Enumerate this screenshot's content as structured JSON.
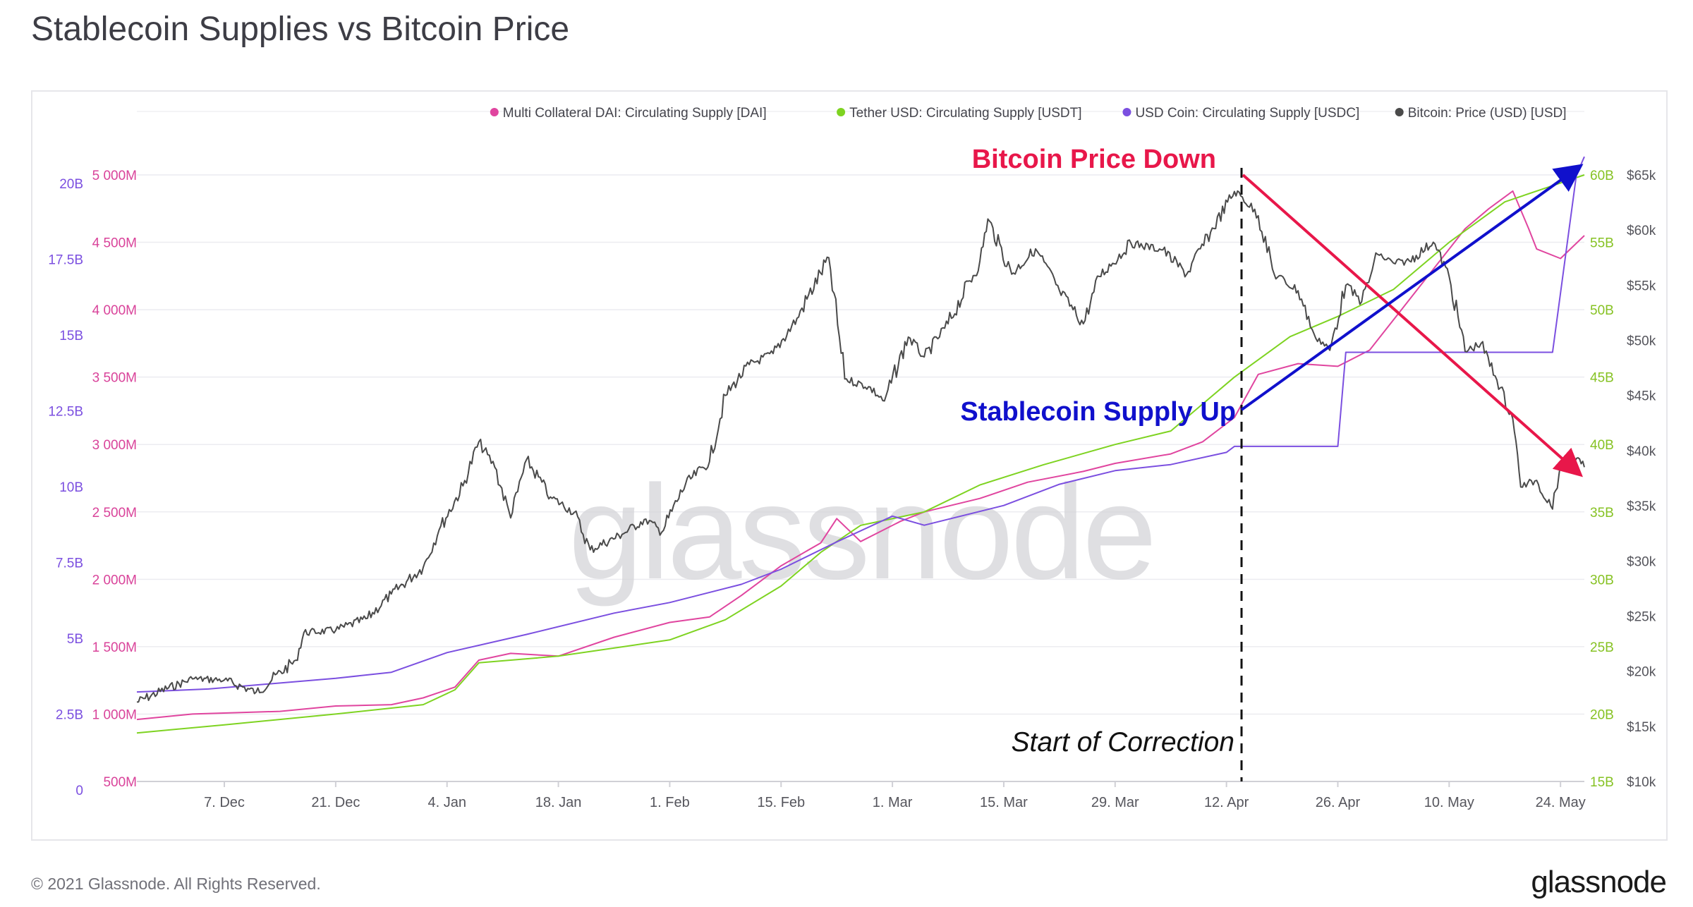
{
  "page": {
    "title": "Stablecoin Supplies vs Bitcoin Price",
    "copyright": "© 2021 Glassnode. All Rights Reserved.",
    "brand": "glassnode",
    "watermark": "glassnode"
  },
  "chart_data": {
    "type": "line",
    "title": "Stablecoin Supplies vs Bitcoin Price",
    "legend": {
      "placement": "top-right",
      "entries": [
        {
          "label": "Multi Collateral DAI: Circulating Supply [DAI]",
          "color": "#e0459f"
        },
        {
          "label": "Tether USD: Circulating Supply [USDT]",
          "color": "#7ed321"
        },
        {
          "label": "USD Coin: Circulating Supply [USDC]",
          "color": "#7b4fe0"
        },
        {
          "label": "Bitcoin: Price (USD) [USD]",
          "color": "#4a4a4a"
        }
      ]
    },
    "x_axis": {
      "start": "2020-11-26",
      "end": "2021-05-27",
      "ticks": [
        {
          "date": "2020-12-07",
          "label": "7. Dec"
        },
        {
          "date": "2020-12-21",
          "label": "21. Dec"
        },
        {
          "date": "2021-01-04",
          "label": "4. Jan"
        },
        {
          "date": "2021-01-18",
          "label": "18. Jan"
        },
        {
          "date": "2021-02-01",
          "label": "1. Feb"
        },
        {
          "date": "2021-02-15",
          "label": "15. Feb"
        },
        {
          "date": "2021-03-01",
          "label": "1. Mar"
        },
        {
          "date": "2021-03-15",
          "label": "15. Mar"
        },
        {
          "date": "2021-03-29",
          "label": "29. Mar"
        },
        {
          "date": "2021-04-12",
          "label": "12. Apr"
        },
        {
          "date": "2021-04-26",
          "label": "26. Apr"
        },
        {
          "date": "2021-05-10",
          "label": "10. May"
        },
        {
          "date": "2021-05-24",
          "label": "24. May"
        }
      ]
    },
    "y_axes": [
      {
        "id": "usdc",
        "side": "left-outer",
        "color": "#7b4fe0",
        "range": [
          0,
          20000000000
        ],
        "ticks": [
          {
            "value": 0,
            "label": "0"
          },
          {
            "value": 2500000000,
            "label": "2.5B"
          },
          {
            "value": 5000000000,
            "label": "5B"
          },
          {
            "value": 7500000000,
            "label": "7.5B"
          },
          {
            "value": 10000000000,
            "label": "10B"
          },
          {
            "value": 12500000000,
            "label": "12.5B"
          },
          {
            "value": 15000000000,
            "label": "15B"
          },
          {
            "value": 17500000000,
            "label": "17.5B"
          },
          {
            "value": 20000000000,
            "label": "20B"
          }
        ]
      },
      {
        "id": "dai",
        "side": "left-inner",
        "color": "#d9439a",
        "range": [
          500000000,
          5000000000
        ],
        "ticks": [
          {
            "value": 500000000,
            "label": "500M"
          },
          {
            "value": 1000000000,
            "label": "1 000M"
          },
          {
            "value": 1500000000,
            "label": "1 500M"
          },
          {
            "value": 2000000000,
            "label": "2 000M"
          },
          {
            "value": 2500000000,
            "label": "2 500M"
          },
          {
            "value": 3000000000,
            "label": "3 000M"
          },
          {
            "value": 3500000000,
            "label": "3 500M"
          },
          {
            "value": 4000000000,
            "label": "4 000M"
          },
          {
            "value": 4500000000,
            "label": "4 500M"
          },
          {
            "value": 5000000000,
            "label": "5 000M"
          }
        ]
      },
      {
        "id": "usdt",
        "side": "right-inner",
        "color": "#86c223",
        "range": [
          15000000000,
          60000000000
        ],
        "ticks": [
          {
            "value": 15000000000,
            "label": "15B"
          },
          {
            "value": 20000000000,
            "label": "20B"
          },
          {
            "value": 25000000000,
            "label": "25B"
          },
          {
            "value": 30000000000,
            "label": "30B"
          },
          {
            "value": 35000000000,
            "label": "35B"
          },
          {
            "value": 40000000000,
            "label": "40B"
          },
          {
            "value": 45000000000,
            "label": "45B"
          },
          {
            "value": 50000000000,
            "label": "50B"
          },
          {
            "value": 55000000000,
            "label": "55B"
          },
          {
            "value": 60000000000,
            "label": "60B"
          }
        ]
      },
      {
        "id": "btc",
        "side": "right-outer",
        "color": "#55555c",
        "range": [
          10000,
          65000
        ],
        "ticks": [
          {
            "value": 10000,
            "label": "$10k"
          },
          {
            "value": 15000,
            "label": "$15k"
          },
          {
            "value": 20000,
            "label": "$20k"
          },
          {
            "value": 25000,
            "label": "$25k"
          },
          {
            "value": 30000,
            "label": "$30k"
          },
          {
            "value": 35000,
            "label": "$35k"
          },
          {
            "value": 40000,
            "label": "$40k"
          },
          {
            "value": 45000,
            "label": "$45k"
          },
          {
            "value": 50000,
            "label": "$50k"
          },
          {
            "value": 55000,
            "label": "$55k"
          },
          {
            "value": 60000,
            "label": "$60k"
          },
          {
            "value": 65000,
            "label": "$65k"
          }
        ]
      }
    ],
    "grid": true,
    "series": [
      {
        "name": "Multi Collateral DAI: Circulating Supply [DAI]",
        "axis": "dai",
        "color": "#e0459f",
        "points": [
          [
            "2020-11-26",
            960000000.0
          ],
          [
            "2020-12-03",
            1000000000.0
          ],
          [
            "2020-12-14",
            1020000000.0
          ],
          [
            "2020-12-21",
            1060000000.0
          ],
          [
            "2020-12-28",
            1070000000.0
          ],
          [
            "2021-01-01",
            1120000000.0
          ],
          [
            "2021-01-05",
            1200000000.0
          ],
          [
            "2021-01-08",
            1400000000.0
          ],
          [
            "2021-01-12",
            1450000000.0
          ],
          [
            "2021-01-18",
            1430000000.0
          ],
          [
            "2021-01-25",
            1570000000.0
          ],
          [
            "2021-02-01",
            1680000000.0
          ],
          [
            "2021-02-06",
            1720000000.0
          ],
          [
            "2021-02-10",
            1880000000.0
          ],
          [
            "2021-02-15",
            2100000000.0
          ],
          [
            "2021-02-20",
            2270000000.0
          ],
          [
            "2021-02-22",
            2450000000.0
          ],
          [
            "2021-02-25",
            2280000000.0
          ],
          [
            "2021-03-02",
            2430000000.0
          ],
          [
            "2021-03-05",
            2500000000.0
          ],
          [
            "2021-03-12",
            2600000000.0
          ],
          [
            "2021-03-18",
            2720000000.0
          ],
          [
            "2021-03-25",
            2800000000.0
          ],
          [
            "2021-03-29",
            2860000000.0
          ],
          [
            "2021-04-05",
            2930000000.0
          ],
          [
            "2021-04-09",
            3020000000.0
          ],
          [
            "2021-04-13",
            3200000000.0
          ],
          [
            "2021-04-16",
            3520000000.0
          ],
          [
            "2021-04-21",
            3600000000.0
          ],
          [
            "2021-04-26",
            3580000000.0
          ],
          [
            "2021-04-30",
            3700000000.0
          ],
          [
            "2021-05-04",
            4000000000.0
          ],
          [
            "2021-05-08",
            4300000000.0
          ],
          [
            "2021-05-12",
            4600000000.0
          ],
          [
            "2021-05-15",
            4750000000.0
          ],
          [
            "2021-05-18",
            4880000000.0
          ],
          [
            "2021-05-20",
            4600000000.0
          ],
          [
            "2021-05-21",
            4450000000.0
          ],
          [
            "2021-05-24",
            4380000000.0
          ],
          [
            "2021-05-27",
            4550000000.0
          ]
        ]
      },
      {
        "name": "Tether USD: Circulating Supply [USDT]",
        "axis": "usdt",
        "color": "#7ed321",
        "points": [
          [
            "2020-11-26",
            18600000000.0
          ],
          [
            "2020-12-07",
            19200000000.0
          ],
          [
            "2020-12-21",
            20000000000.0
          ],
          [
            "2021-01-01",
            20700000000.0
          ],
          [
            "2021-01-05",
            21800000000.0
          ],
          [
            "2021-01-08",
            23800000000.0
          ],
          [
            "2021-01-18",
            24300000000.0
          ],
          [
            "2021-02-01",
            25500000000.0
          ],
          [
            "2021-02-08",
            27000000000.0
          ],
          [
            "2021-02-15",
            29500000000.0
          ],
          [
            "2021-02-20",
            32000000000.0
          ],
          [
            "2021-02-25",
            34000000000.0
          ],
          [
            "2021-03-05",
            35000000000.0
          ],
          [
            "2021-03-12",
            37000000000.0
          ],
          [
            "2021-03-20",
            38500000000.0
          ],
          [
            "2021-03-29",
            40000000000.0
          ],
          [
            "2021-04-05",
            41000000000.0
          ],
          [
            "2021-04-09",
            43000000000.0
          ],
          [
            "2021-04-13",
            45000000000.0
          ],
          [
            "2021-04-20",
            48000000000.0
          ],
          [
            "2021-04-26",
            49500000000.0
          ],
          [
            "2021-05-03",
            51500000000.0
          ],
          [
            "2021-05-10",
            55000000000.0
          ],
          [
            "2021-05-17",
            58000000000.0
          ],
          [
            "2021-05-27",
            60000000000.0
          ]
        ]
      },
      {
        "name": "USD Coin: Circulating Supply [USDC]",
        "axis": "usdc",
        "color": "#7b4fe0",
        "points": [
          [
            "2020-11-26",
            2950000000.0
          ],
          [
            "2020-12-05",
            3050000000.0
          ],
          [
            "2020-12-21",
            3400000000.0
          ],
          [
            "2020-12-28",
            3600000000.0
          ],
          [
            "2021-01-04",
            4250000000.0
          ],
          [
            "2021-01-14",
            4850000000.0
          ],
          [
            "2021-01-25",
            5550000000.0
          ],
          [
            "2021-02-01",
            5900000000.0
          ],
          [
            "2021-02-10",
            6500000000.0
          ],
          [
            "2021-02-15",
            7000000000.0
          ],
          [
            "2021-02-22",
            7900000000.0
          ],
          [
            "2021-03-01",
            8750000000.0
          ],
          [
            "2021-03-05",
            8450000000.0
          ],
          [
            "2021-03-15",
            9100000000.0
          ],
          [
            "2021-03-22",
            9800000000.0
          ],
          [
            "2021-03-29",
            10250000000.0
          ],
          [
            "2021-04-05",
            10450000000.0
          ],
          [
            "2021-04-12",
            10850000000.0
          ],
          [
            "2021-04-13",
            11050000000.0
          ],
          [
            "2021-04-26",
            11050000000.0
          ],
          [
            "2021-04-27",
            14150000000.0
          ],
          [
            "2021-05-23",
            14150000000.0
          ],
          [
            "2021-05-26",
            20000000000.0
          ],
          [
            "2021-05-27",
            20600000000.0
          ]
        ]
      },
      {
        "name": "Bitcoin: Price (USD) [USD]",
        "axis": "btc",
        "color": "#4a4a4a",
        "points": [
          [
            "2020-11-26",
            17200
          ],
          [
            "2020-11-30",
            18500
          ],
          [
            "2020-12-03",
            19300
          ],
          [
            "2020-12-07",
            19200
          ],
          [
            "2020-12-11",
            18100
          ],
          [
            "2020-12-16",
            21000
          ],
          [
            "2020-12-17",
            23500
          ],
          [
            "2020-12-21",
            23700
          ],
          [
            "2020-12-25",
            24800
          ],
          [
            "2020-12-28",
            27000
          ],
          [
            "2021-01-01",
            29400
          ],
          [
            "2021-01-03",
            32800
          ],
          [
            "2021-01-06",
            36800
          ],
          [
            "2021-01-08",
            40800
          ],
          [
            "2021-01-10",
            38500
          ],
          [
            "2021-01-12",
            33900
          ],
          [
            "2021-01-14",
            39200
          ],
          [
            "2021-01-17",
            35800
          ],
          [
            "2021-01-20",
            34400
          ],
          [
            "2021-01-22",
            31000
          ],
          [
            "2021-01-26",
            32400
          ],
          [
            "2021-01-29",
            33800
          ],
          [
            "2021-01-31",
            32600
          ],
          [
            "2021-02-03",
            37000
          ],
          [
            "2021-02-06",
            39000
          ],
          [
            "2021-02-08",
            45000
          ],
          [
            "2021-02-11",
            47800
          ],
          [
            "2021-02-14",
            48800
          ],
          [
            "2021-02-17",
            52000
          ],
          [
            "2021-02-21",
            57500
          ],
          [
            "2021-02-23",
            46500
          ],
          [
            "2021-02-26",
            45800
          ],
          [
            "2021-02-28",
            44500
          ],
          [
            "2021-03-03",
            50300
          ],
          [
            "2021-03-05",
            48500
          ],
          [
            "2021-03-08",
            51500
          ],
          [
            "2021-03-12",
            57200
          ],
          [
            "2021-03-13",
            61000
          ],
          [
            "2021-03-16",
            56000
          ],
          [
            "2021-03-19",
            58300
          ],
          [
            "2021-03-22",
            54500
          ],
          [
            "2021-03-25",
            51500
          ],
          [
            "2021-03-27",
            55800
          ],
          [
            "2021-03-31",
            58800
          ],
          [
            "2021-04-04",
            58200
          ],
          [
            "2021-04-07",
            56000
          ],
          [
            "2021-04-10",
            59800
          ],
          [
            "2021-04-13",
            63500
          ],
          [
            "2021-04-14",
            63000
          ],
          [
            "2021-04-16",
            61300
          ],
          [
            "2021-04-18",
            56000
          ],
          [
            "2021-04-21",
            54500
          ],
          [
            "2021-04-23",
            50600
          ],
          [
            "2021-04-25",
            49100
          ],
          [
            "2021-04-27",
            55000
          ],
          [
            "2021-04-29",
            53500
          ],
          [
            "2021-05-01",
            57800
          ],
          [
            "2021-05-03",
            57000
          ],
          [
            "2021-05-05",
            57200
          ],
          [
            "2021-05-08",
            58900
          ],
          [
            "2021-05-10",
            55800
          ],
          [
            "2021-05-12",
            49000
          ],
          [
            "2021-05-14",
            49700
          ],
          [
            "2021-05-16",
            46400
          ],
          [
            "2021-05-18",
            42900
          ],
          [
            "2021-05-19",
            36700
          ],
          [
            "2021-05-21",
            37300
          ],
          [
            "2021-05-23",
            34700
          ],
          [
            "2021-05-24",
            38800
          ],
          [
            "2021-05-26",
            39300
          ],
          [
            "2021-05-27",
            38500
          ]
        ]
      }
    ],
    "annotations": [
      {
        "id": "btc-down",
        "text": "Bitcoin Price Down",
        "color": "#e8174a"
      },
      {
        "id": "supply-up",
        "text": "Stablecoin Supply Up",
        "color": "#1010cc"
      },
      {
        "id": "correction",
        "text": "Start of Correction",
        "color": "#111111",
        "date": "2021-04-13"
      }
    ]
  }
}
